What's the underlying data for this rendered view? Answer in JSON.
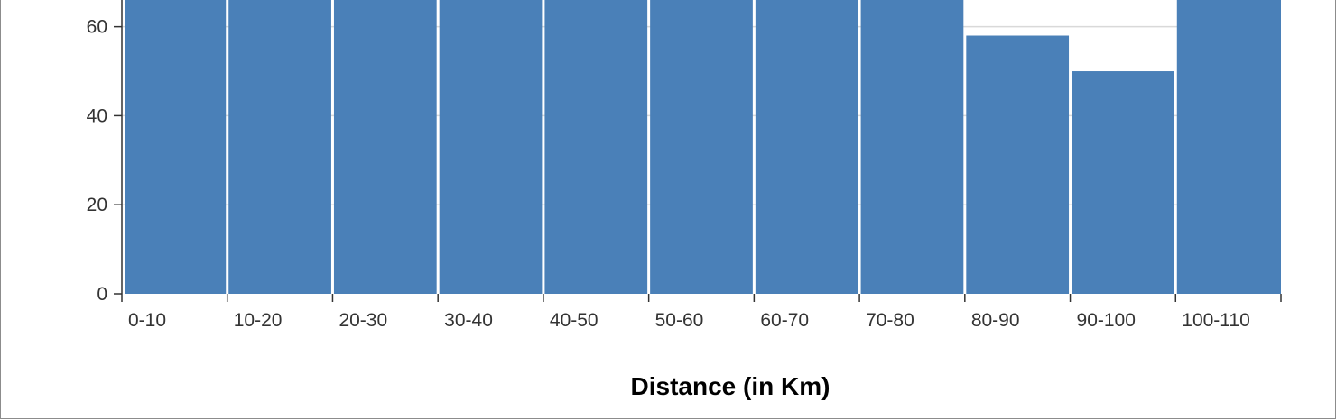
{
  "chart_data": {
    "type": "bar",
    "categories": [
      "0-10",
      "10-20",
      "20-30",
      "30-40",
      "40-50",
      "50-60",
      "60-70",
      "70-80",
      "80-90",
      "90-100",
      "100-110"
    ],
    "values": [
      66,
      66,
      66,
      66,
      66,
      66,
      66,
      66,
      58,
      50,
      66
    ],
    "xlabel": "Distance (in Km)",
    "ylabel": "",
    "ylim": [
      0,
      66
    ],
    "y_ticks": [
      0,
      20,
      40,
      60
    ],
    "grid": "horizontal",
    "bar_color": "#4a80b8",
    "gridline_color": "#d9d9d9",
    "axis_color": "#333333"
  }
}
